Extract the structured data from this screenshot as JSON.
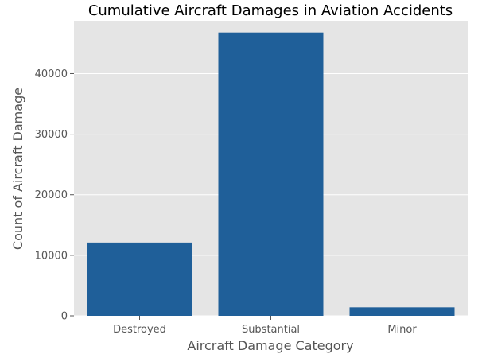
{
  "chart_data": {
    "type": "bar",
    "title": "Cumulative Aircraft Damages in Aviation Accidents",
    "xlabel": "Aircraft Damage Category",
    "ylabel": "Count of Aircraft Damage",
    "categories": [
      "Destroyed",
      "Substantial",
      "Minor"
    ],
    "values": [
      12100,
      46800,
      1400
    ],
    "ylim": [
      0,
      48600
    ],
    "yticks": [
      0,
      10000,
      20000,
      30000,
      40000
    ],
    "ytick_labels": [
      "0",
      "10000",
      "20000",
      "30000",
      "40000"
    ],
    "grid": true,
    "legend": "none",
    "colors": {
      "bar": "#1f5f99",
      "plot_background": "#e5e5e5",
      "grid": "#ffffff"
    }
  }
}
